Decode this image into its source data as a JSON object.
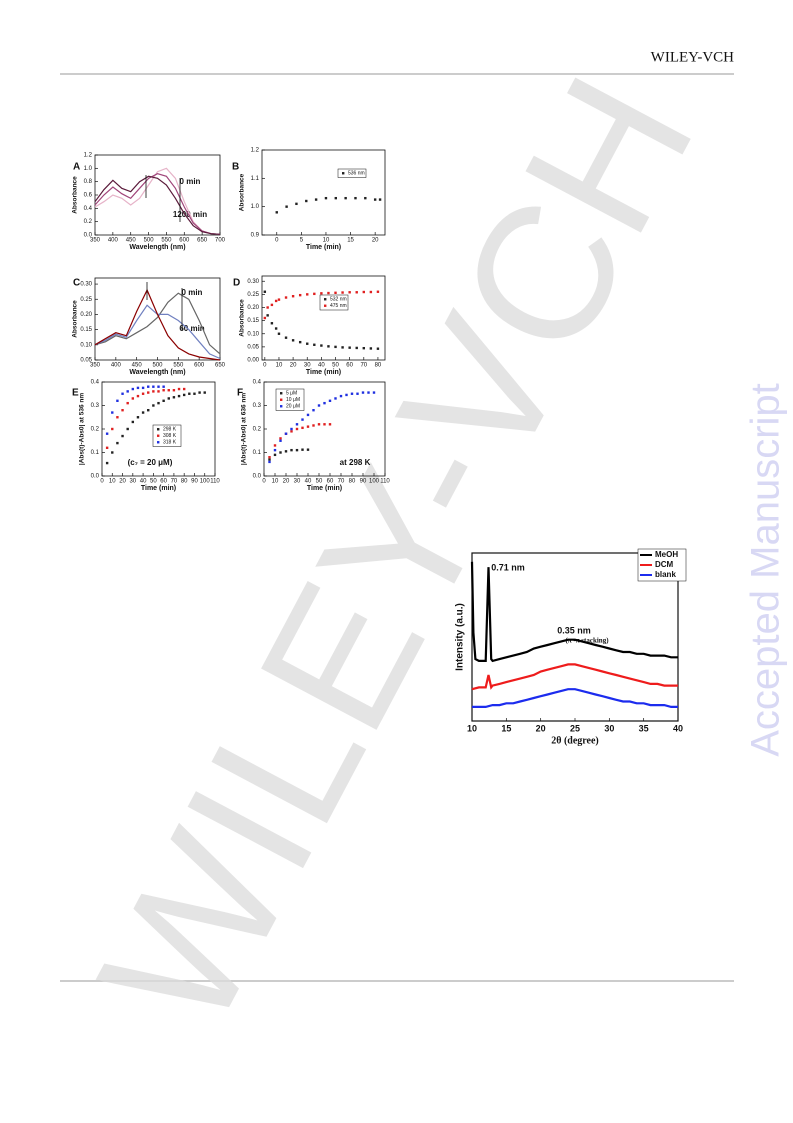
{
  "header": {
    "publisher": "WILEY-VCH"
  },
  "watermark": "WILEY-VCH",
  "side_text": "Accepted Manuscript",
  "chart_data": [
    {
      "type": "line",
      "label": "A",
      "xlabel": "Wavelength (nm)",
      "ylabel": "Absorbance",
      "annotations": [
        "0 min",
        "1200 min"
      ],
      "x": [
        350,
        375,
        400,
        425,
        450,
        475,
        500,
        525,
        550,
        575,
        600,
        625,
        650,
        675,
        700
      ],
      "xlim": [
        350,
        700
      ],
      "xticks": [
        350,
        400,
        450,
        500,
        550,
        600,
        650,
        700
      ],
      "ylim": [
        0,
        1.2
      ],
      "yticks": [
        {
          "value": 0,
          "label": "0.0"
        },
        {
          "value": 0.2,
          "label": "0.2"
        },
        {
          "value": 0.4,
          "label": "0.4"
        },
        {
          "value": 0.6,
          "label": "0.6"
        },
        {
          "value": 0.8,
          "label": "0.8"
        },
        {
          "value": 1,
          "label": "1.0"
        },
        {
          "value": 1.2,
          "label": "1.2"
        }
      ],
      "series": [
        {
          "color": "#e6b3c8",
          "values": [
            0.42,
            0.5,
            0.6,
            0.55,
            0.45,
            0.55,
            0.75,
            0.95,
            1.0,
            0.85,
            0.5,
            0.2,
            0.06,
            0.02,
            0.01
          ]
        },
        {
          "color": "#a0457a",
          "values": [
            0.45,
            0.6,
            0.72,
            0.62,
            0.55,
            0.7,
            0.85,
            0.92,
            0.88,
            0.7,
            0.42,
            0.18,
            0.06,
            0.02,
            0.01
          ]
        },
        {
          "color": "#5a1a3a",
          "values": [
            0.5,
            0.68,
            0.82,
            0.7,
            0.65,
            0.8,
            0.88,
            0.85,
            0.75,
            0.55,
            0.32,
            0.14,
            0.05,
            0.02,
            0.01
          ]
        }
      ]
    },
    {
      "type": "scatter",
      "label": "B",
      "xlabel": "Time (min)",
      "ylabel": "Absorbance",
      "x": [
        0,
        2,
        4,
        6,
        8,
        10,
        12,
        14,
        16,
        18,
        20,
        21
      ],
      "xlim": [
        -3,
        22
      ],
      "xticks": [
        0,
        5,
        10,
        15,
        20
      ],
      "ylim": [
        0.9,
        1.2
      ],
      "yticks": [
        {
          "value": 0.9,
          "label": "0.9"
        },
        {
          "value": 1,
          "label": "1.0"
        },
        {
          "value": 1.1,
          "label": "1.1"
        },
        {
          "value": 1.2,
          "label": "1.2"
        }
      ],
      "series": [
        {
          "name": "536 nm",
          "color": "#222222",
          "values": [
            0.98,
            1.0,
            1.01,
            1.02,
            1.025,
            1.03,
            1.03,
            1.03,
            1.03,
            1.03,
            1.025,
            1.025
          ]
        }
      ]
    },
    {
      "type": "line",
      "label": "C",
      "xlabel": "Wavelength (nm)",
      "ylabel": "Absorbance",
      "annotations": [
        "0 min",
        "60 min"
      ],
      "x": [
        350,
        375,
        400,
        425,
        450,
        475,
        500,
        525,
        550,
        575,
        600,
        625,
        650
      ],
      "xlim": [
        350,
        650
      ],
      "xticks": [
        350,
        400,
        450,
        500,
        550,
        600,
        650
      ],
      "ylim": [
        0.05,
        0.32
      ],
      "yticks": [
        {
          "value": 0.05,
          "label": "0.05"
        },
        {
          "value": 0.1,
          "label": "0.10"
        },
        {
          "value": 0.15,
          "label": "0.15"
        },
        {
          "value": 0.2,
          "label": "0.20"
        },
        {
          "value": 0.25,
          "label": "0.25"
        },
        {
          "value": 0.3,
          "label": "0.30"
        }
      ],
      "series": [
        {
          "color": "#666666",
          "values": [
            0.1,
            0.11,
            0.13,
            0.12,
            0.14,
            0.16,
            0.19,
            0.24,
            0.27,
            0.25,
            0.18,
            0.1,
            0.07
          ]
        },
        {
          "color": "#7080c0",
          "values": [
            0.1,
            0.115,
            0.135,
            0.125,
            0.18,
            0.23,
            0.2,
            0.2,
            0.18,
            0.15,
            0.11,
            0.07,
            0.055
          ]
        },
        {
          "color": "#8b0000",
          "values": [
            0.1,
            0.12,
            0.14,
            0.13,
            0.21,
            0.28,
            0.2,
            0.13,
            0.09,
            0.07,
            0.06,
            0.055,
            0.05
          ]
        }
      ]
    },
    {
      "type": "scatter",
      "label": "D",
      "xlabel": "Time (min)",
      "ylabel": "Absorbance",
      "x": [
        0,
        2,
        5,
        8,
        10,
        15,
        20,
        25,
        30,
        35,
        40,
        45,
        50,
        55,
        60,
        65,
        70,
        75,
        80
      ],
      "xlim": [
        -2,
        85
      ],
      "xticks": [
        0,
        10,
        20,
        30,
        40,
        50,
        60,
        70,
        80
      ],
      "ylim": [
        0,
        0.32
      ],
      "yticks": [
        {
          "value": 0,
          "label": "0.00"
        },
        {
          "value": 0.05,
          "label": "0.05"
        },
        {
          "value": 0.1,
          "label": "0.10"
        },
        {
          "value": 0.15,
          "label": "0.15"
        },
        {
          "value": 0.2,
          "label": "0.20"
        },
        {
          "value": 0.25,
          "label": "0.25"
        },
        {
          "value": 0.3,
          "label": "0.30"
        }
      ],
      "series": [
        {
          "name": "532 nm",
          "color": "#222222",
          "values": [
            0.26,
            0.17,
            0.14,
            0.12,
            0.1,
            0.085,
            0.075,
            0.068,
            0.062,
            0.058,
            0.055,
            0.052,
            0.05,
            0.048,
            0.047,
            0.046,
            0.045,
            0.044,
            0.043
          ]
        },
        {
          "name": "475 nm",
          "color": "#e02020",
          "values": [
            0.16,
            0.2,
            0.21,
            0.225,
            0.23,
            0.238,
            0.243,
            0.247,
            0.25,
            0.252,
            0.254,
            0.255,
            0.256,
            0.257,
            0.258,
            0.258,
            0.259,
            0.259,
            0.26
          ]
        }
      ]
    },
    {
      "type": "scatter",
      "label": "E",
      "xlabel": "Time (min)",
      "ylabel": "|Abs(t)-Abs0| at 536 nm",
      "annotations": [
        "(c₇ = 20 μM)"
      ],
      "xlim": [
        0,
        110
      ],
      "xticks": [
        0,
        10,
        20,
        30,
        40,
        50,
        60,
        70,
        80,
        90,
        100,
        110
      ],
      "ylim": [
        0,
        0.4
      ],
      "yticks": [
        {
          "value": 0,
          "label": "0.0"
        },
        {
          "value": 0.1,
          "label": "0.1"
        },
        {
          "value": 0.2,
          "label": "0.2"
        },
        {
          "value": 0.3,
          "label": "0.3"
        },
        {
          "value": 0.4,
          "label": "0.4"
        }
      ],
      "series": [
        {
          "name": "298 K",
          "color": "#222222",
          "x": [
            5,
            10,
            15,
            20,
            25,
            30,
            35,
            40,
            45,
            50,
            55,
            60,
            65,
            70,
            75,
            80,
            85,
            90,
            95,
            100
          ],
          "values": [
            0.055,
            0.1,
            0.14,
            0.17,
            0.2,
            0.23,
            0.25,
            0.27,
            0.28,
            0.3,
            0.31,
            0.32,
            0.33,
            0.335,
            0.34,
            0.345,
            0.35,
            0.35,
            0.355,
            0.355
          ]
        },
        {
          "name": "308 K",
          "color": "#e02020",
          "x": [
            5,
            10,
            15,
            20,
            25,
            30,
            35,
            40,
            45,
            50,
            55,
            60,
            65,
            70,
            75,
            80
          ],
          "values": [
            0.12,
            0.2,
            0.25,
            0.28,
            0.31,
            0.33,
            0.34,
            0.35,
            0.355,
            0.36,
            0.36,
            0.365,
            0.365,
            0.365,
            0.37,
            0.37
          ]
        },
        {
          "name": "318 K",
          "color": "#2030e0",
          "x": [
            5,
            10,
            15,
            20,
            25,
            30,
            35,
            40,
            45,
            50,
            55,
            60
          ],
          "values": [
            0.18,
            0.27,
            0.32,
            0.35,
            0.36,
            0.37,
            0.375,
            0.375,
            0.38,
            0.38,
            0.38,
            0.38
          ]
        }
      ]
    },
    {
      "type": "scatter",
      "label": "F",
      "xlabel": "Time (min)",
      "ylabel": "|Abs(t)-Abs0| at 636 nm",
      "annotations": [
        "at 298 K"
      ],
      "xlim": [
        0,
        110
      ],
      "xticks": [
        0,
        10,
        20,
        30,
        40,
        50,
        60,
        70,
        80,
        90,
        100,
        110
      ],
      "ylim": [
        0,
        0.4
      ],
      "yticks": [
        {
          "value": 0,
          "label": "0.0"
        },
        {
          "value": 0.1,
          "label": "0.1"
        },
        {
          "value": 0.2,
          "label": "0.2"
        },
        {
          "value": 0.3,
          "label": "0.3"
        },
        {
          "value": 0.4,
          "label": "0.4"
        }
      ],
      "series": [
        {
          "name": "5 μM",
          "color": "#222222",
          "x": [
            5,
            10,
            15,
            20,
            25,
            30,
            35,
            40
          ],
          "values": [
            0.07,
            0.09,
            0.1,
            0.105,
            0.11,
            0.11,
            0.112,
            0.112
          ]
        },
        {
          "name": "10 μM",
          "color": "#e02020",
          "x": [
            5,
            10,
            15,
            20,
            25,
            30,
            35,
            40,
            45,
            50,
            55,
            60
          ],
          "values": [
            0.08,
            0.13,
            0.16,
            0.18,
            0.19,
            0.2,
            0.205,
            0.21,
            0.215,
            0.22,
            0.22,
            0.22
          ]
        },
        {
          "name": "20 μM",
          "color": "#2030e0",
          "x": [
            5,
            10,
            15,
            20,
            25,
            30,
            35,
            40,
            45,
            50,
            55,
            60,
            65,
            70,
            75,
            80,
            85,
            90,
            95,
            100
          ],
          "values": [
            0.06,
            0.11,
            0.15,
            0.18,
            0.2,
            0.22,
            0.24,
            0.26,
            0.28,
            0.3,
            0.31,
            0.32,
            0.33,
            0.34,
            0.345,
            0.35,
            0.35,
            0.355,
            0.355,
            0.355
          ]
        }
      ]
    },
    {
      "type": "line",
      "xlabel": "2θ (degree)",
      "ylabel": "Intensity (a.u.)",
      "annotations": [
        "0.71 nm",
        "0.35 nm",
        "(π -π stacking)"
      ],
      "xlim": [
        10,
        40
      ],
      "xticks": [
        10,
        15,
        20,
        25,
        30,
        35,
        40
      ],
      "ylim": [
        10,
        105
      ],
      "series": [
        {
          "name": "MeOH",
          "color": "#000000",
          "x": [
            10,
            10.2,
            10.5,
            11,
            12,
            12.4,
            12.8,
            13,
            14,
            15,
            16,
            17,
            18,
            19,
            20,
            21,
            22,
            23,
            24,
            25,
            26,
            27,
            28,
            29,
            30,
            31,
            32,
            33,
            34,
            35,
            36,
            37,
            38,
            39,
            40
          ],
          "values": [
            100,
            60,
            45,
            44,
            44,
            97,
            45,
            44,
            45,
            46,
            47,
            48,
            49,
            51,
            52,
            53,
            54,
            55,
            56,
            56,
            55,
            54,
            53,
            52,
            51,
            50,
            49,
            49,
            48,
            48,
            47,
            47,
            47,
            46,
            46
          ]
        },
        {
          "name": "DCM",
          "color": "#ee1c1c",
          "x": [
            10,
            11,
            12,
            12.4,
            12.8,
            13,
            14,
            15,
            16,
            17,
            18,
            19,
            20,
            21,
            22,
            23,
            24,
            25,
            26,
            27,
            28,
            29,
            30,
            31,
            32,
            33,
            34,
            35,
            36,
            37,
            38,
            39,
            40
          ],
          "values": [
            28,
            29,
            29,
            36,
            29,
            30,
            31,
            32,
            33,
            34,
            35,
            36,
            38,
            39,
            40,
            41,
            42,
            42,
            41,
            40,
            39,
            38,
            37,
            36,
            35,
            34,
            33,
            32,
            31,
            31,
            30,
            30,
            30
          ]
        },
        {
          "name": "blank",
          "color": "#1c2cee",
          "x": [
            10,
            11,
            12,
            13,
            14,
            15,
            16,
            17,
            18,
            19,
            20,
            21,
            22,
            23,
            24,
            25,
            26,
            27,
            28,
            29,
            30,
            31,
            32,
            33,
            34,
            35,
            36,
            37,
            38,
            39,
            40
          ],
          "values": [
            18,
            18,
            18,
            19,
            19,
            20,
            20,
            21,
            22,
            23,
            24,
            25,
            26,
            27,
            28,
            28,
            27,
            26,
            25,
            24,
            23,
            22,
            21,
            21,
            20,
            20,
            19,
            19,
            19,
            18,
            18
          ]
        }
      ]
    }
  ]
}
